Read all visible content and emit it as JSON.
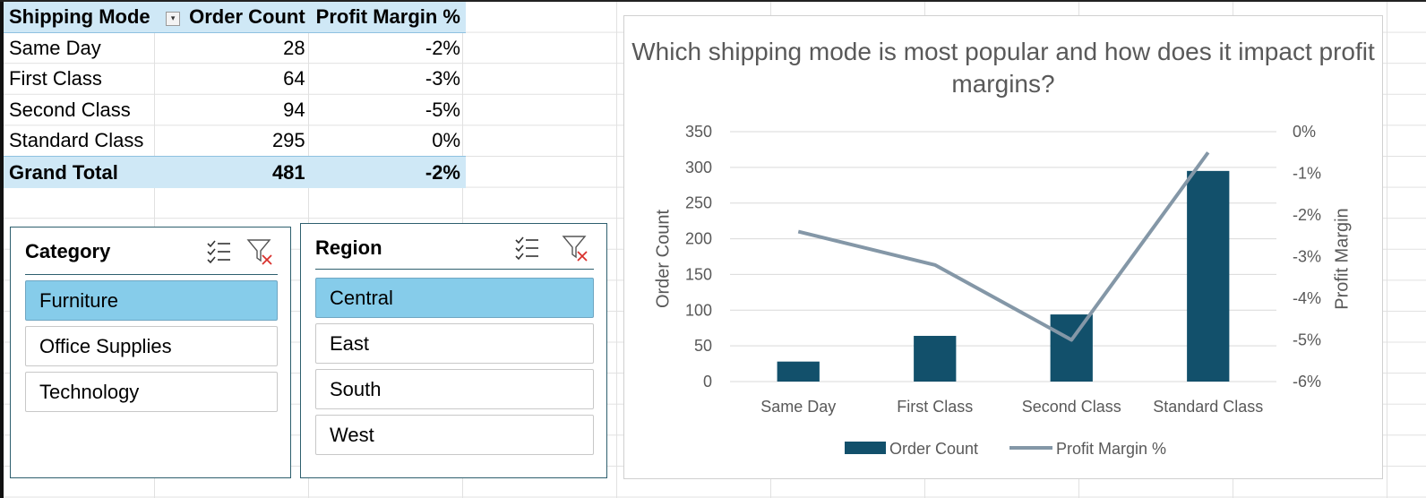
{
  "pivot": {
    "headers": [
      "Shipping Mode",
      "Order Count",
      "Profit Margin %"
    ],
    "rows": [
      {
        "mode": "Same Day",
        "count": "28",
        "margin": "-2%"
      },
      {
        "mode": "First Class",
        "count": "64",
        "margin": "-3%"
      },
      {
        "mode": "Second Class",
        "count": "94",
        "margin": "-5%"
      },
      {
        "mode": "Standard Class",
        "count": "295",
        "margin": "0%"
      }
    ],
    "total": {
      "mode": "Grand Total",
      "count": "481",
      "margin": "-2%"
    }
  },
  "slicers": {
    "category": {
      "title": "Category",
      "items": [
        "Furniture",
        "Office Supplies",
        "Technology"
      ],
      "selected": "Furniture"
    },
    "region": {
      "title": "Region",
      "items": [
        "Central",
        "East",
        "South",
        "West"
      ],
      "selected": "Central"
    },
    "icons": [
      "multi-select-icon",
      "clear-filter-icon"
    ]
  },
  "colors": {
    "header_fill": "#cfe8f6",
    "slicer_selected": "#86ccea",
    "bar": "#12506b",
    "line": "#8497a7"
  },
  "chart_data": {
    "type": "bar",
    "title": "Which shipping mode is most popular and how does it impact profit margins?",
    "categories": [
      "Same Day",
      "First Class",
      "Second Class",
      "Standard Class"
    ],
    "series": [
      {
        "name": "Order Count",
        "type": "bar",
        "axis": "left",
        "values": [
          28,
          64,
          94,
          295
        ]
      },
      {
        "name": "Profit Margin %",
        "type": "line",
        "axis": "right",
        "values": [
          -2.4,
          -3.2,
          -5.0,
          -0.5
        ]
      }
    ],
    "ylabel": "Order Count",
    "y2label": "Profit Margin",
    "ylim": [
      0,
      350
    ],
    "y2lim": [
      -6,
      0
    ],
    "yticks": [
      "0",
      "50",
      "100",
      "150",
      "200",
      "250",
      "300",
      "350"
    ],
    "y2ticks": [
      "-6%",
      "-5%",
      "-4%",
      "-3%",
      "-2%",
      "-1%",
      "0%"
    ],
    "grid": true,
    "legend": "bottom"
  }
}
